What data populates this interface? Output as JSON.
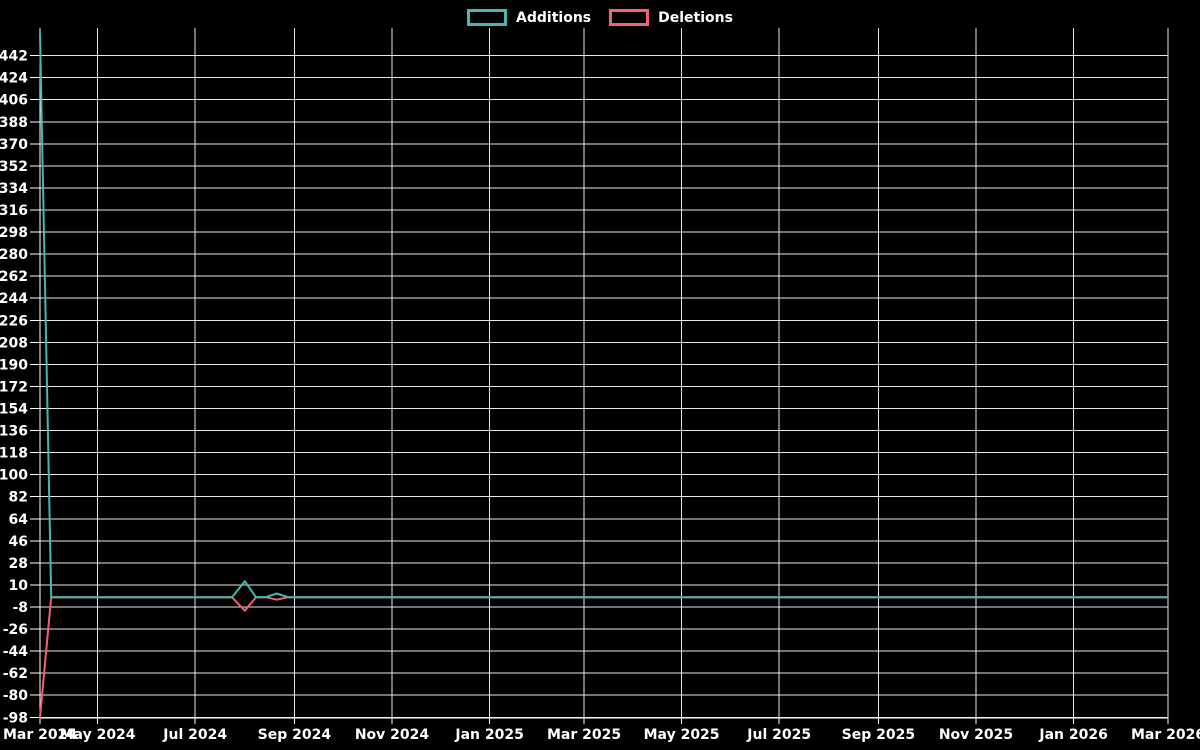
{
  "page": {
    "background": "#000000",
    "text_color": "#ffffff",
    "grid_color": "#e8e8e8",
    "axis_color": "#ffffff"
  },
  "chart_data": {
    "type": "line",
    "title": "",
    "legend_position": "top",
    "grid": true,
    "x_range": [
      "Mar 2024",
      "Mar 2026"
    ],
    "ylim": [
      -98,
      460
    ],
    "y_tick_step": 18,
    "y_ticks": [
      442,
      424,
      406,
      388,
      370,
      352,
      334,
      316,
      298,
      280,
      262,
      244,
      226,
      208,
      190,
      172,
      154,
      136,
      118,
      100,
      82,
      64,
      46,
      28,
      10,
      -8,
      -26,
      -44,
      -62,
      -80,
      -98
    ],
    "x_ticks": [
      {
        "label": "Mar 2024",
        "date": "2024-03-26"
      },
      {
        "label": "May 2024",
        "date": "2024-05-01"
      },
      {
        "label": "Jul 2024",
        "date": "2024-07-01"
      },
      {
        "label": "Sep 2024",
        "date": "2024-09-01"
      },
      {
        "label": "Nov 2024",
        "date": "2024-11-01"
      },
      {
        "label": "Jan 2025",
        "date": "2025-01-01"
      },
      {
        "label": "Mar 2025",
        "date": "2025-03-01"
      },
      {
        "label": "May 2025",
        "date": "2025-05-01"
      },
      {
        "label": "Jul 2025",
        "date": "2025-07-01"
      },
      {
        "label": "Sep 2025",
        "date": "2025-09-01"
      },
      {
        "label": "Nov 2025",
        "date": "2025-11-01"
      },
      {
        "label": "Jan 2026",
        "date": "2026-01-01"
      },
      {
        "label": "Mar 2026",
        "date": "2026-03-01"
      }
    ],
    "series": [
      {
        "name": "Additions",
        "color": "#46b8b0",
        "points": [
          [
            "2024-03-26",
            460
          ],
          [
            "2024-04-02",
            0
          ],
          [
            "2024-07-24",
            0
          ],
          [
            "2024-08-01",
            13
          ],
          [
            "2024-08-08",
            0
          ],
          [
            "2024-08-14",
            0
          ],
          [
            "2024-08-21",
            3
          ],
          [
            "2024-08-28",
            0
          ],
          [
            "2026-03-01",
            0
          ]
        ]
      },
      {
        "name": "Deletions",
        "color": "#f2607a",
        "points": [
          [
            "2024-03-26",
            -98
          ],
          [
            "2024-04-02",
            0
          ],
          [
            "2024-07-24",
            0
          ],
          [
            "2024-08-01",
            -11
          ],
          [
            "2024-08-08",
            0
          ],
          [
            "2024-08-14",
            0
          ],
          [
            "2024-08-21",
            -2
          ],
          [
            "2024-08-28",
            0
          ],
          [
            "2026-03-01",
            0
          ]
        ]
      }
    ]
  }
}
